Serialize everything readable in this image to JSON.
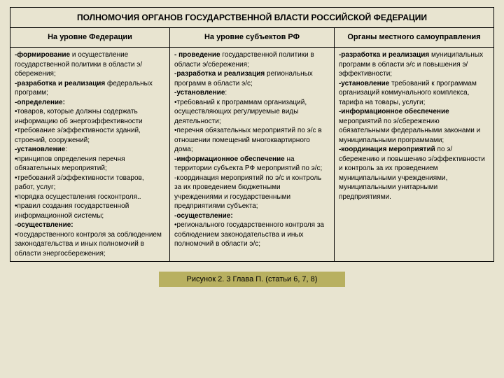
{
  "title": "ПОЛНОМОЧИЯ ОРГАНОВ ГОСУДАРСТВЕННОЙ ВЛАСТИ РОССИЙСКОЙ ФЕДЕРАЦИИ",
  "headers": {
    "c1": "На уровне Федерации",
    "c2": "На уровне субъектов РФ",
    "c3": "Органы местного самоуправления"
  },
  "col1": {
    "p1a": "-формирование",
    "p1b": " и осуществление государственной политики в области э/сбережения;",
    "p2a": "-разработка и реализация",
    "p2b": " федеральных программ;",
    "p3a": "-определение:",
    "p3b": "•товаров, которые должны содержать информацию об энергоэффективности",
    "p3c": "•требование э/эффективности зданий, строений, сооружений;",
    "p4a": "-установление",
    "p4b": ":",
    "p4c": "•принципов определения перечня обязательных мероприятий;",
    "p4d": "•требований э/эффективности товаров, работ, услуг;",
    "p4e": "•порядка осуществления госконтроля..",
    "p4f": "•правил создания государственной информационной системы;",
    "p5a": "-осуществление:",
    "p5b": "•государственного контроля за соблюдением законодательства и иных полномочий в области энергосбережения;"
  },
  "col2": {
    "p1a": "- проведение",
    "p1b": " государственной политики в области э/сбережения;",
    "p2a": "-разработка и реализация",
    "p2b": " региональных программ в области э/с;",
    "p3a": "-установление",
    "p3b": ":",
    "p3c": "•требований к программам организаций, осуществляющих регулируемые виды деятельности;",
    "p3d": "•перечня обязательных мероприятий по э/с в отношении помещений многоквартирного дома;",
    "p4a": "-информационное обеспечение",
    "p4b": " на территории субъекта РФ мероприятий по э/с;",
    "p5": "-координация мероприятий по э/с и контроль за их проведением бюджетными учреждениями и государственными предприятиями субъекта;",
    "p6a": "-осуществление:",
    "p6b": "•регионального государственного контроля за соблюдением законодательства и иных полномочий в области э/с;"
  },
  "col3": {
    "p1a": "-разработка и реализация",
    "p1b": " муниципальных программ в области э/с и повышения э/эффективности;",
    "p2a": "-установление",
    "p2b": " требований к программам организаций коммунального комплекса, тарифа на товары, услуги;",
    "p3a": "-информационное обеспечение",
    "p3b": " мероприятий по э/сбережению обязательными федеральными законами и муниципальными программами;",
    "p4a": "-координация мероприятий",
    "p4b": " по э/сбережению и повышению э/эффективности и контроль за их проведением муниципальными учреждениями, муниципальными унитарными предприятиями."
  },
  "caption": "Рисунок 2. 3 Глава П. (статьи 6, 7, 8)",
  "colors": {
    "background": "#e8e4d0",
    "caption_bg": "#b8b060",
    "border": "#000000"
  }
}
